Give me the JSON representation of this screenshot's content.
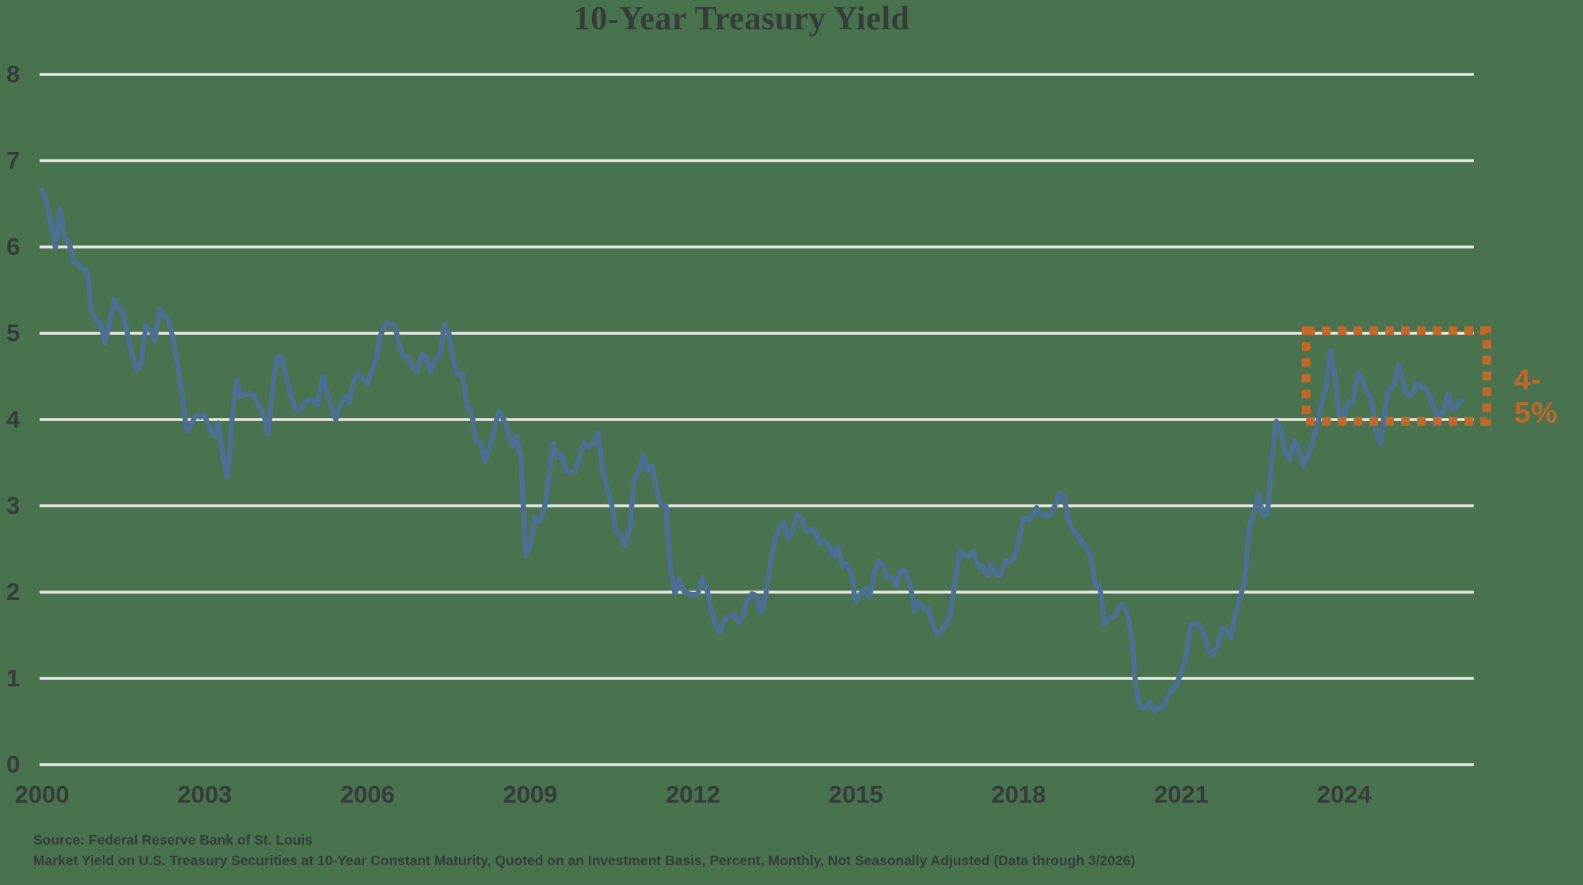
{
  "chart": {
    "title": "10-Year Treasury Yield",
    "annotation": {
      "label": "4-5%"
    }
  },
  "footer": {
    "source": "Source: Federal Reserve Bank of St. Louis",
    "description": "Market Yield on U.S. Treasury Securities at 10-Year Constant Maturity, Quoted on an Investment Basis, Percent, Monthly, Not Seasonally Adjusted (Data through 3/2026)"
  },
  "chart_data": {
    "type": "line",
    "title": "10-Year Treasury Yield",
    "xlabel": "",
    "ylabel": "",
    "grid": "horizontal",
    "legend": "none",
    "x_axis": {
      "ticks": [
        2000,
        2003,
        2006,
        2009,
        2012,
        2015,
        2018,
        2021,
        2024
      ],
      "range": [
        2000,
        2026.4
      ]
    },
    "y_axis": {
      "ticks": [
        0,
        1,
        2,
        3,
        4,
        5,
        6,
        7,
        8
      ],
      "range": [
        0,
        8
      ],
      "unit": "percent"
    },
    "series": [
      {
        "name": "10-Year Treasury Constant Maturity Yield",
        "frequency": "monthly",
        "start": "2000-01",
        "end": "2026-03",
        "start_year": 2000,
        "values": [
          6.66,
          6.52,
          6.26,
          5.99,
          6.44,
          6.1,
          6.05,
          5.83,
          5.8,
          5.74,
          5.72,
          5.24,
          5.16,
          5.1,
          4.89,
          5.14,
          5.39,
          5.28,
          5.24,
          4.97,
          4.73,
          4.57,
          4.65,
          5.09,
          5.04,
          4.91,
          5.28,
          5.21,
          5.16,
          4.93,
          4.65,
          4.26,
          3.87,
          3.94,
          4.05,
          4.03,
          4.05,
          3.9,
          3.81,
          3.96,
          3.57,
          3.33,
          3.98,
          4.45,
          4.27,
          4.29,
          4.3,
          4.27,
          4.15,
          4.08,
          3.83,
          4.35,
          4.72,
          4.73,
          4.5,
          4.28,
          4.13,
          4.1,
          4.19,
          4.23,
          4.22,
          4.17,
          4.5,
          4.34,
          4.14,
          4.0,
          4.18,
          4.26,
          4.2,
          4.46,
          4.54,
          4.47,
          4.42,
          4.57,
          4.72,
          4.99,
          5.11,
          5.11,
          5.09,
          4.88,
          4.72,
          4.73,
          4.6,
          4.56,
          4.76,
          4.72,
          4.56,
          4.69,
          4.75,
          5.1,
          5.0,
          4.67,
          4.52,
          4.53,
          4.15,
          4.1,
          3.74,
          3.74,
          3.51,
          3.68,
          3.88,
          4.1,
          4.01,
          3.89,
          3.69,
          3.81,
          3.53,
          2.42,
          2.52,
          2.87,
          2.82,
          2.93,
          3.29,
          3.72,
          3.56,
          3.59,
          3.4,
          3.39,
          3.4,
          3.59,
          3.73,
          3.69,
          3.73,
          3.85,
          3.42,
          3.2,
          3.01,
          2.7,
          2.65,
          2.54,
          2.76,
          3.29,
          3.39,
          3.58,
          3.41,
          3.46,
          3.17,
          3.0,
          3.0,
          2.3,
          1.98,
          2.15,
          2.01,
          1.98,
          1.97,
          1.97,
          2.17,
          2.05,
          1.8,
          1.62,
          1.53,
          1.68,
          1.72,
          1.75,
          1.65,
          1.72,
          1.91,
          1.98,
          1.96,
          1.76,
          1.93,
          2.3,
          2.58,
          2.74,
          2.81,
          2.62,
          2.72,
          2.9,
          2.86,
          2.71,
          2.72,
          2.71,
          2.56,
          2.6,
          2.54,
          2.42,
          2.53,
          2.3,
          2.33,
          2.21,
          1.88,
          1.98,
          2.04,
          1.94,
          2.2,
          2.36,
          2.32,
          2.17,
          2.17,
          2.07,
          2.26,
          2.24,
          2.09,
          1.78,
          1.89,
          1.81,
          1.81,
          1.64,
          1.5,
          1.56,
          1.63,
          1.76,
          2.14,
          2.49,
          2.43,
          2.42,
          2.48,
          2.3,
          2.3,
          2.19,
          2.32,
          2.21,
          2.2,
          2.36,
          2.35,
          2.4,
          2.58,
          2.86,
          2.84,
          2.87,
          2.98,
          2.91,
          2.89,
          2.89,
          3.0,
          3.15,
          3.12,
          2.83,
          2.71,
          2.68,
          2.57,
          2.53,
          2.4,
          2.07,
          2.06,
          1.63,
          1.7,
          1.71,
          1.81,
          1.86,
          1.76,
          1.5,
          0.87,
          0.66,
          0.67,
          0.73,
          0.62,
          0.65,
          0.68,
          0.79,
          0.87,
          0.93,
          1.08,
          1.26,
          1.61,
          1.64,
          1.62,
          1.52,
          1.32,
          1.28,
          1.37,
          1.58,
          1.56,
          1.47,
          1.76,
          1.93,
          2.13,
          2.75,
          2.9,
          3.14,
          2.9,
          2.9,
          3.52,
          3.98,
          3.89,
          3.62,
          3.53,
          3.75,
          3.66,
          3.46,
          3.57,
          3.75,
          3.9,
          4.17,
          4.38,
          4.8,
          4.5,
          4.02,
          4.06,
          4.21,
          4.21,
          4.54,
          4.48,
          4.31,
          4.25,
          3.87,
          3.72,
          4.1,
          4.36,
          4.39,
          4.63,
          4.45,
          4.28,
          4.28,
          4.42,
          4.38,
          4.37,
          4.26,
          4.12,
          4.03,
          4.1,
          4.3,
          4.12,
          4.16,
          4.22
        ]
      }
    ],
    "annotation": {
      "label": "4-5%",
      "shape": "dashed-rectangle",
      "x_range": [
        2023.3,
        2026.63
      ],
      "y_range": [
        3.98,
        5.03
      ]
    },
    "colors": {
      "background": "#49734F",
      "line": "#4C7093",
      "gridline": "#E9E9E3",
      "annotation": "#C0692C",
      "text": "#363C38"
    }
  }
}
